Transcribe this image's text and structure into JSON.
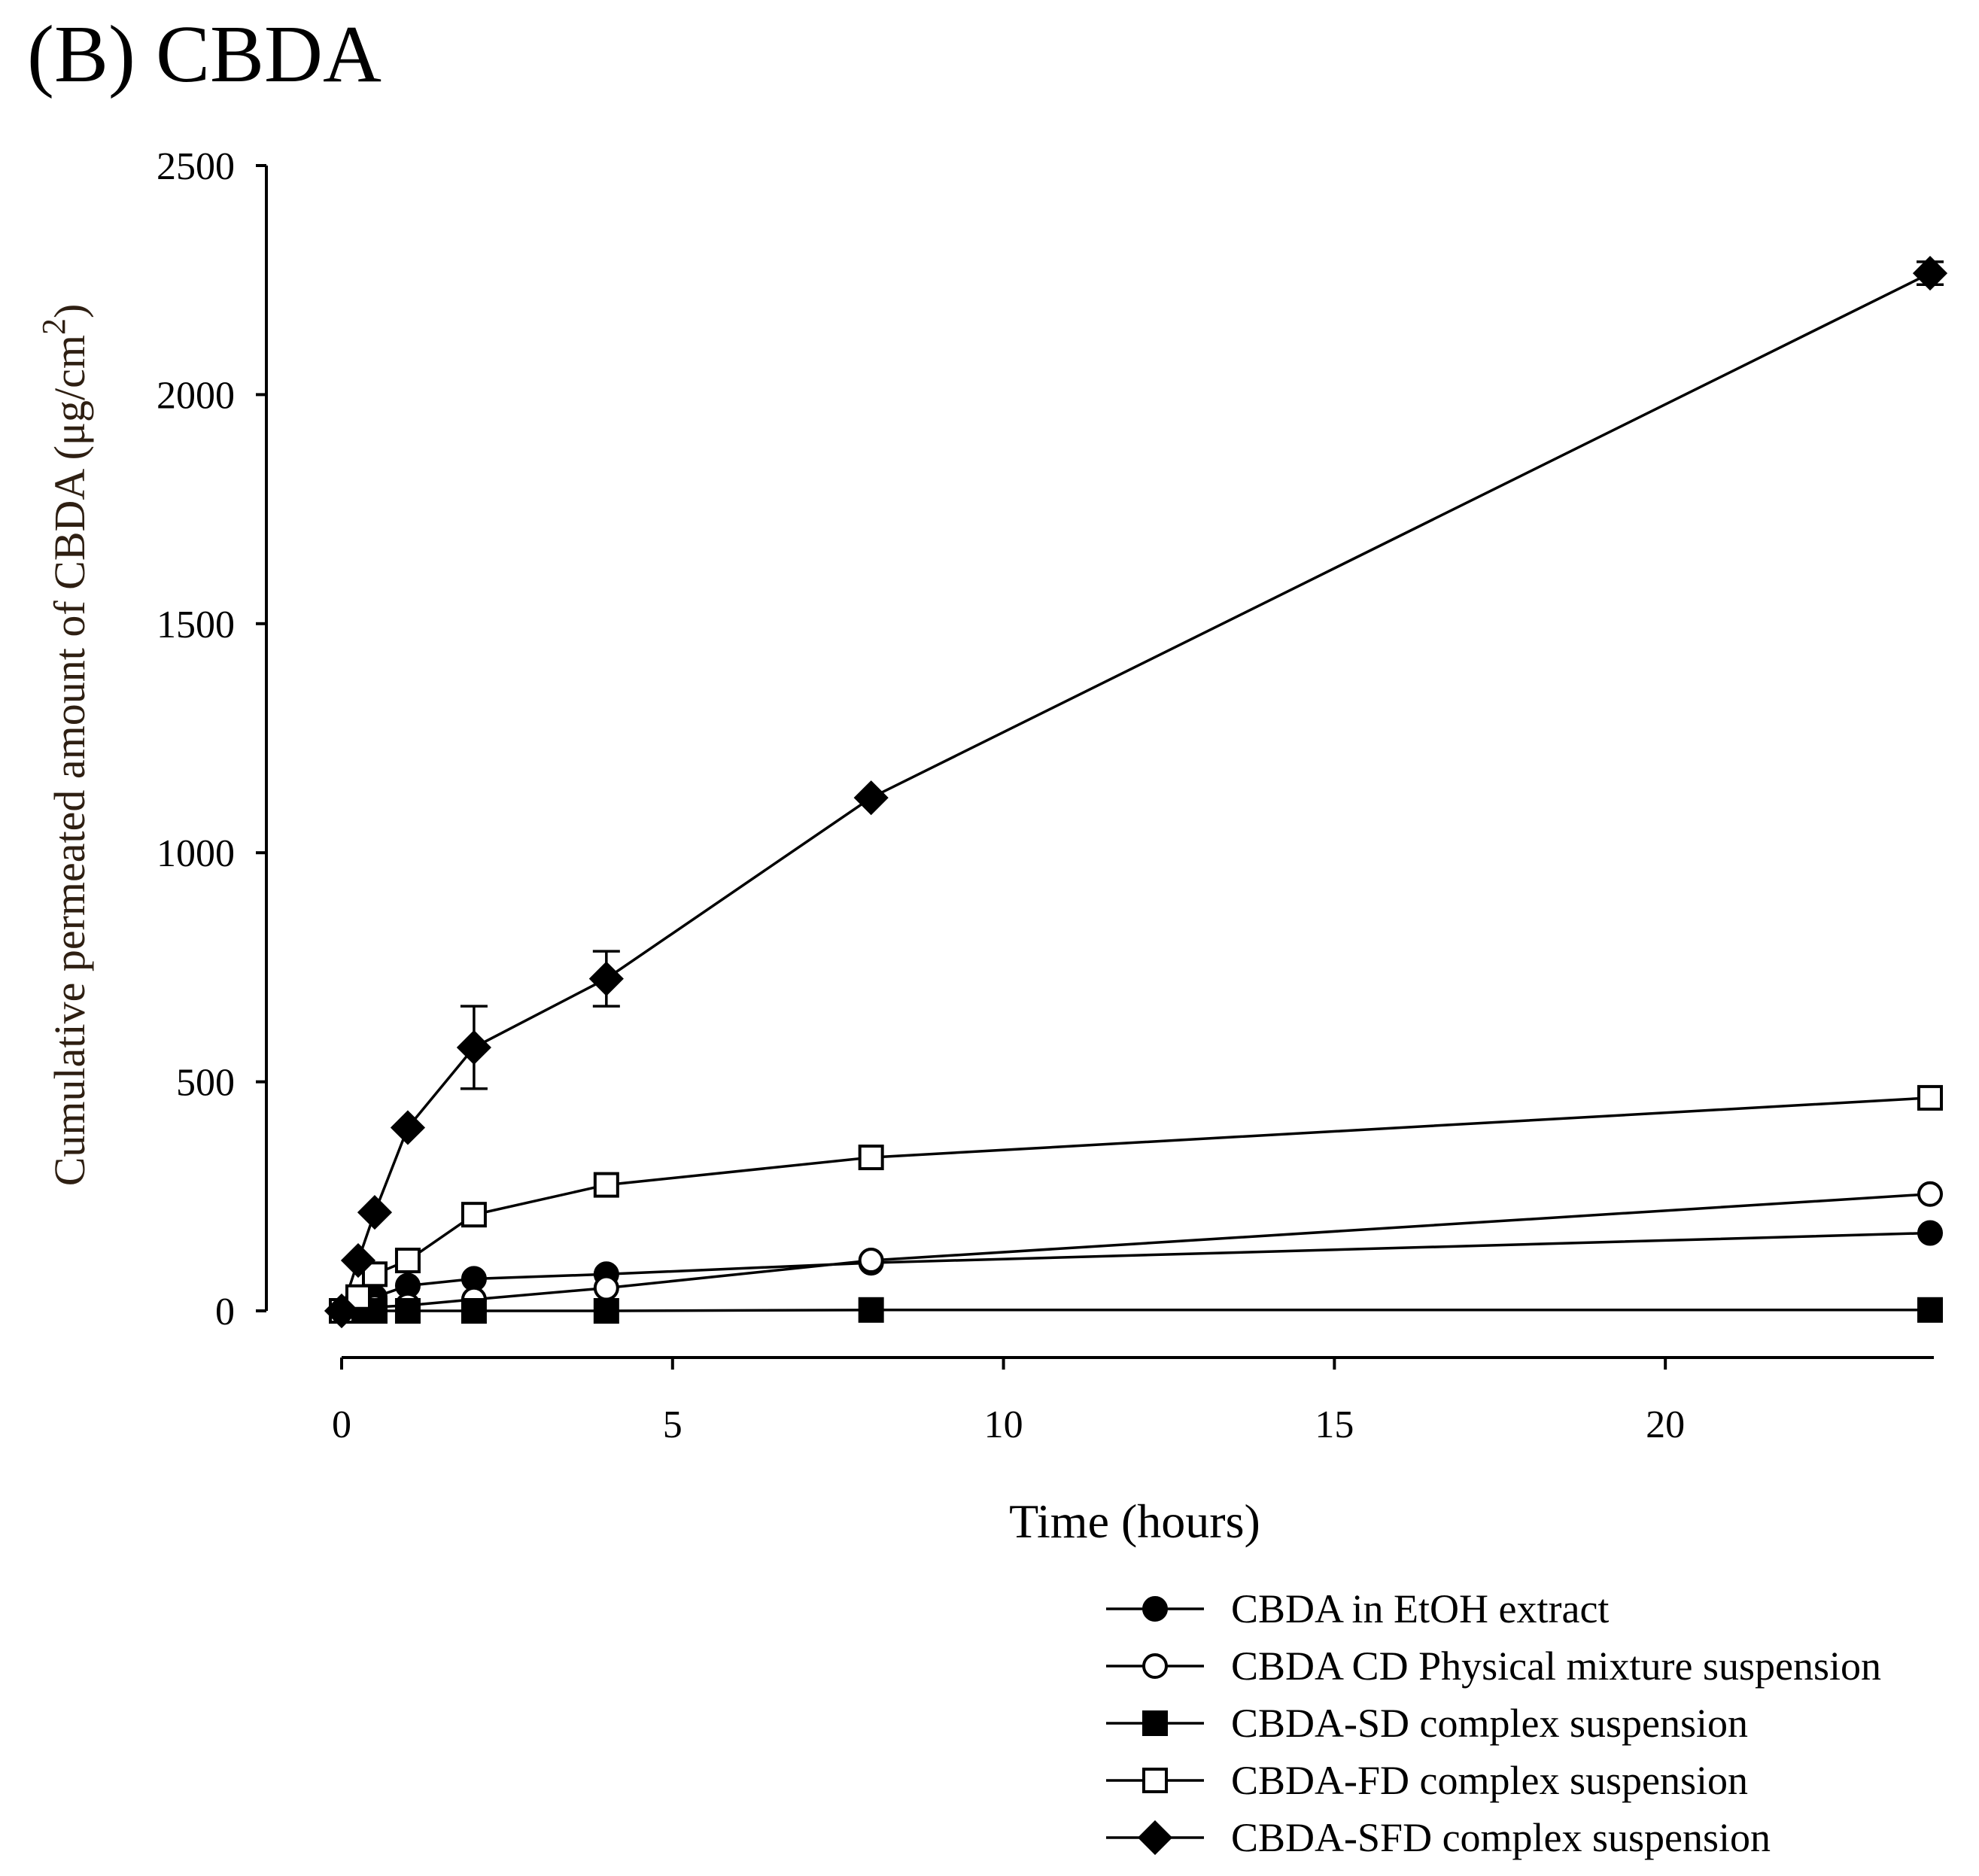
{
  "chart_data": {
    "type": "line",
    "panel_label": "(B) CBDA",
    "xlabel": "Time (hours)",
    "ylabel_main": "Cumulative permeated amount of CBDA (μg/cm",
    "ylabel_superscript": "2",
    "ylabel_close": ")",
    "xlim": [
      0,
      24
    ],
    "ylim": [
      0,
      2500
    ],
    "xticks": [
      0,
      5,
      10,
      15,
      20
    ],
    "yticks": [
      0,
      500,
      1000,
      1500,
      2000,
      2500
    ],
    "legend_position": "bottom-right",
    "series": [
      {
        "name": "CBDA in EtOH extract",
        "marker": "circle",
        "filled": true,
        "x": [
          0,
          0.25,
          0.5,
          1,
          2,
          4,
          8,
          24
        ],
        "y": [
          0,
          20,
          30,
          55,
          70,
          80,
          105,
          170
        ],
        "err": [
          0,
          0,
          0,
          0,
          0,
          0,
          0,
          0
        ]
      },
      {
        "name": "CBDA CD Physical mixture suspension",
        "marker": "circle",
        "filled": false,
        "x": [
          0,
          0.25,
          0.5,
          1,
          2,
          4,
          8,
          24
        ],
        "y": [
          0,
          5,
          8,
          12,
          25,
          50,
          110,
          255
        ],
        "err": [
          0,
          0,
          0,
          0,
          0,
          0,
          0,
          0
        ]
      },
      {
        "name": "CBDA-SD complex suspension",
        "marker": "square",
        "filled": true,
        "x": [
          0,
          0.25,
          0.5,
          1,
          2,
          4,
          8,
          24
        ],
        "y": [
          0,
          0,
          0,
          0,
          0,
          0,
          2,
          2
        ],
        "err": [
          0,
          0,
          0,
          0,
          0,
          0,
          0,
          0
        ]
      },
      {
        "name": "CBDA-FD complex suspension",
        "marker": "square",
        "filled": false,
        "x": [
          0,
          0.25,
          0.5,
          1,
          2,
          4,
          8,
          24
        ],
        "y": [
          0,
          30,
          80,
          110,
          210,
          275,
          335,
          465
        ],
        "err": [
          0,
          0,
          0,
          0,
          0,
          0,
          0,
          0
        ]
      },
      {
        "name": "CBDA-SFD complex suspension",
        "marker": "diamond",
        "filled": true,
        "x": [
          0,
          0.25,
          0.5,
          1,
          2,
          4,
          8,
          24
        ],
        "y": [
          0,
          110,
          215,
          400,
          575,
          725,
          1120,
          2265
        ],
        "err": [
          0,
          0,
          0,
          0,
          90,
          60,
          0,
          25
        ]
      }
    ]
  }
}
